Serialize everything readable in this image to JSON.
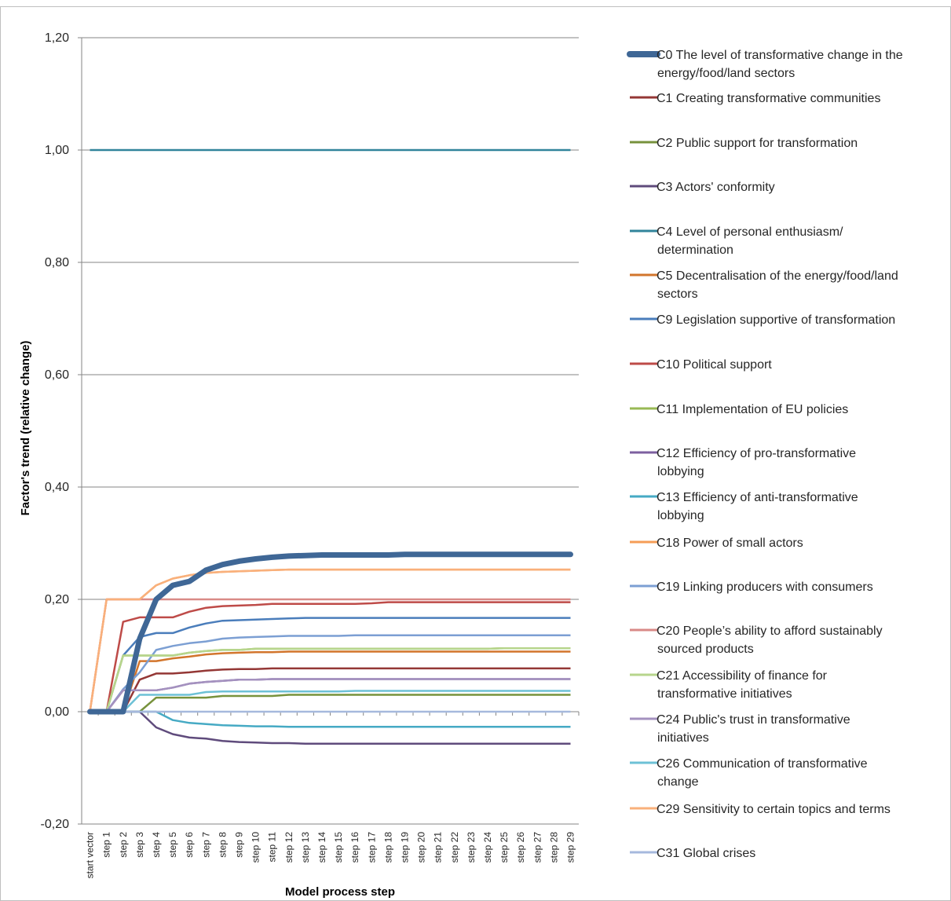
{
  "chart_data": {
    "type": "line",
    "xlabel": "Model process step",
    "ylabel": "Factor's trend (relative change)",
    "ylim": [
      -0.2,
      1.2
    ],
    "yticks": [
      -0.2,
      0.0,
      0.2,
      0.4,
      0.6,
      0.8,
      1.0,
      1.2
    ],
    "ytick_labels": [
      "-0,20",
      "0,00",
      "0,20",
      "0,40",
      "0,60",
      "0,80",
      "1,00",
      "1,20"
    ],
    "categories": [
      "start vector",
      "step 1",
      "step 2",
      "step 3",
      "step 4",
      "step 5",
      "step 6",
      "step 7",
      "step 8",
      "step 9",
      "step 10",
      "step 11",
      "step 12",
      "step 13",
      "step 14",
      "step 15",
      "step 16",
      "step 17",
      "step 18",
      "step 19",
      "step 20",
      "step 21",
      "step 22",
      "step 23",
      "step 24",
      "step 25",
      "step 26",
      "step 27",
      "step 28",
      "step 29"
    ],
    "grid": "horizontal",
    "legend_position": "right",
    "series": [
      {
        "name": "C0 The level of transformative change in the energy/food/land sectors",
        "color": "#3F6796",
        "width": 7,
        "values": [
          0,
          0,
          0,
          0.13,
          0.2,
          0.225,
          0.232,
          0.252,
          0.262,
          0.268,
          0.272,
          0.275,
          0.277,
          0.278,
          0.279,
          0.279,
          0.279,
          0.279,
          0.279,
          0.28,
          0.28,
          0.28,
          0.28,
          0.28,
          0.28,
          0.28,
          0.28,
          0.28,
          0.28,
          0.28
        ]
      },
      {
        "name": "C1 Creating transformative communities",
        "color": "#943735",
        "width": 2.5,
        "values": [
          0,
          0,
          0,
          0.057,
          0.068,
          0.068,
          0.07,
          0.073,
          0.075,
          0.076,
          0.076,
          0.077,
          0.077,
          0.077,
          0.077,
          0.077,
          0.077,
          0.077,
          0.077,
          0.077,
          0.077,
          0.077,
          0.077,
          0.077,
          0.077,
          0.077,
          0.077,
          0.077,
          0.077,
          0.077
        ]
      },
      {
        "name": "C2 Public support for transformation",
        "color": "#77923C",
        "width": 2.5,
        "values": [
          0,
          0,
          0,
          0,
          0.025,
          0.025,
          0.025,
          0.025,
          0.028,
          0.028,
          0.028,
          0.028,
          0.03,
          0.03,
          0.03,
          0.03,
          0.03,
          0.03,
          0.03,
          0.03,
          0.03,
          0.03,
          0.03,
          0.03,
          0.03,
          0.03,
          0.03,
          0.03,
          0.03,
          0.03
        ]
      },
      {
        "name": "C3 Actors' conformity",
        "color": "#5F4B7C",
        "width": 2.5,
        "values": [
          0,
          0,
          0,
          0,
          -0.028,
          -0.04,
          -0.046,
          -0.048,
          -0.052,
          -0.054,
          -0.055,
          -0.056,
          -0.056,
          -0.057,
          -0.057,
          -0.057,
          -0.057,
          -0.057,
          -0.057,
          -0.057,
          -0.057,
          -0.057,
          -0.057,
          -0.057,
          -0.057,
          -0.057,
          -0.057,
          -0.057,
          -0.057,
          -0.057
        ]
      },
      {
        "name": "C4 Level of personal enthusiasm/ determination",
        "color": "#31849B",
        "width": 2.5,
        "values": [
          1,
          1,
          1,
          1,
          1,
          1,
          1,
          1,
          1,
          1,
          1,
          1,
          1,
          1,
          1,
          1,
          1,
          1,
          1,
          1,
          1,
          1,
          1,
          1,
          1,
          1,
          1,
          1,
          1,
          1
        ]
      },
      {
        "name": "C5 Decentralisation of the energy/food/land sectors",
        "color": "#D2752C",
        "width": 2.5,
        "values": [
          0,
          0,
          0,
          0.09,
          0.09,
          0.095,
          0.098,
          0.102,
          0.104,
          0.105,
          0.106,
          0.106,
          0.107,
          0.107,
          0.107,
          0.107,
          0.107,
          0.107,
          0.107,
          0.107,
          0.107,
          0.107,
          0.107,
          0.107,
          0.107,
          0.107,
          0.107,
          0.107,
          0.107,
          0.107
        ]
      },
      {
        "name": "C9 Legislation supportive of transformation",
        "color": "#4A7DBB",
        "width": 2.5,
        "values": [
          0,
          0,
          0.1,
          0.133,
          0.14,
          0.14,
          0.15,
          0.157,
          0.162,
          0.163,
          0.164,
          0.165,
          0.166,
          0.167,
          0.167,
          0.167,
          0.167,
          0.167,
          0.167,
          0.167,
          0.167,
          0.167,
          0.167,
          0.167,
          0.167,
          0.167,
          0.167,
          0.167,
          0.167,
          0.167
        ]
      },
      {
        "name": "C10 Political support",
        "color": "#BE4B48",
        "width": 2.5,
        "values": [
          0,
          0,
          0.16,
          0.168,
          0.168,
          0.168,
          0.178,
          0.185,
          0.188,
          0.189,
          0.19,
          0.192,
          0.192,
          0.192,
          0.192,
          0.192,
          0.192,
          0.193,
          0.195,
          0.195,
          0.195,
          0.195,
          0.195,
          0.195,
          0.195,
          0.195,
          0.195,
          0.195,
          0.195,
          0.195
        ]
      },
      {
        "name": "C11 Implementation of EU policies",
        "color": "#98B954",
        "width": 2.5,
        "values": [
          0,
          0,
          0.1,
          0.1,
          0.1,
          0.1,
          0.105,
          0.108,
          0.11,
          0.11,
          0.112,
          0.112,
          0.112,
          0.112,
          0.112,
          0.112,
          0.112,
          0.112,
          0.112,
          0.112,
          0.112,
          0.112,
          0.112,
          0.112,
          0.112,
          0.113,
          0.113,
          0.113,
          0.113,
          0.113
        ]
      },
      {
        "name": "C12 Efficiency of pro-transformative lobbying",
        "color": "#7D60A0",
        "width": 2.5,
        "values": [
          0,
          0,
          0.038,
          0.038,
          0.038,
          0.043,
          0.05,
          0.053,
          0.055,
          0.057,
          0.057,
          0.058,
          0.058,
          0.058,
          0.058,
          0.058,
          0.058,
          0.058,
          0.058,
          0.058,
          0.058,
          0.058,
          0.058,
          0.058,
          0.058,
          0.058,
          0.058,
          0.058,
          0.058,
          0.058
        ]
      },
      {
        "name": "C13 Efficiency of anti-transformative lobbying",
        "color": "#46AAC4",
        "width": 2.5,
        "values": [
          0,
          0,
          0,
          0,
          0,
          -0.015,
          -0.02,
          -0.022,
          -0.024,
          -0.025,
          -0.026,
          -0.026,
          -0.027,
          -0.027,
          -0.027,
          -0.027,
          -0.027,
          -0.027,
          -0.027,
          -0.027,
          -0.027,
          -0.027,
          -0.027,
          -0.027,
          -0.027,
          -0.027,
          -0.027,
          -0.027,
          -0.027,
          -0.027
        ]
      },
      {
        "name": "C18 Power of small actors",
        "color": "#F59D56",
        "width": 2.5,
        "values": [
          0,
          0.2,
          0.2,
          0.2,
          0.225,
          0.237,
          0.243,
          0.247,
          0.249,
          0.25,
          0.251,
          0.252,
          0.253,
          0.253,
          0.253,
          0.253,
          0.253,
          0.253,
          0.253,
          0.253,
          0.253,
          0.253,
          0.253,
          0.253,
          0.253,
          0.253,
          0.253,
          0.253,
          0.253,
          0.253
        ]
      },
      {
        "name": "C19 Linking producers with consumers",
        "color": "#7C9FD3",
        "width": 2.5,
        "values": [
          0,
          0,
          0.04,
          0.07,
          0.11,
          0.117,
          0.122,
          0.125,
          0.13,
          0.132,
          0.133,
          0.134,
          0.135,
          0.135,
          0.135,
          0.135,
          0.136,
          0.136,
          0.136,
          0.136,
          0.136,
          0.136,
          0.136,
          0.136,
          0.136,
          0.136,
          0.136,
          0.136,
          0.136,
          0.136
        ]
      },
      {
        "name": "C20 People’s ability to afford sustainably sourced products",
        "color": "#D98A87",
        "width": 2.5,
        "values": [
          0,
          0.2,
          0.2,
          0.2,
          0.2,
          0.2,
          0.2,
          0.2,
          0.2,
          0.2,
          0.2,
          0.2,
          0.2,
          0.2,
          0.2,
          0.2,
          0.2,
          0.2,
          0.2,
          0.2,
          0.2,
          0.2,
          0.2,
          0.2,
          0.2,
          0.2,
          0.2,
          0.2,
          0.2,
          0.2
        ]
      },
      {
        "name": "C21 Accessibility of finance for transformative initiatives",
        "color": "#B7D58C",
        "width": 2.5,
        "values": [
          0,
          0,
          0.1,
          0.1,
          0.1,
          0.1,
          0.105,
          0.108,
          0.11,
          0.11,
          0.112,
          0.112,
          0.112,
          0.112,
          0.112,
          0.112,
          0.112,
          0.112,
          0.112,
          0.112,
          0.112,
          0.112,
          0.112,
          0.112,
          0.112,
          0.113,
          0.113,
          0.113,
          0.113,
          0.113
        ]
      },
      {
        "name": "C24 Public's trust in transformative initiatives",
        "color": "#A491BF",
        "width": 2.5,
        "values": [
          0,
          0,
          0.038,
          0.038,
          0.038,
          0.043,
          0.05,
          0.053,
          0.055,
          0.057,
          0.057,
          0.058,
          0.058,
          0.058,
          0.058,
          0.058,
          0.058,
          0.058,
          0.058,
          0.058,
          0.058,
          0.058,
          0.058,
          0.058,
          0.058,
          0.058,
          0.058,
          0.058,
          0.058,
          0.058
        ]
      },
      {
        "name": "C26 Communication of transformative change",
        "color": "#6DC1D6",
        "width": 2.5,
        "values": [
          0,
          0,
          0,
          0.03,
          0.03,
          0.03,
          0.03,
          0.035,
          0.036,
          0.036,
          0.036,
          0.036,
          0.036,
          0.036,
          0.036,
          0.036,
          0.037,
          0.037,
          0.037,
          0.037,
          0.037,
          0.037,
          0.037,
          0.037,
          0.037,
          0.037,
          0.037,
          0.037,
          0.037,
          0.037
        ]
      },
      {
        "name": "C29 Sensitivity to certain topics and terms",
        "color": "#F9B07B",
        "width": 2.5,
        "values": [
          0,
          0.2,
          0.2,
          0.2,
          0.225,
          0.237,
          0.243,
          0.247,
          0.249,
          0.25,
          0.251,
          0.252,
          0.253,
          0.253,
          0.253,
          0.253,
          0.253,
          0.253,
          0.253,
          0.253,
          0.253,
          0.253,
          0.253,
          0.253,
          0.253,
          0.253,
          0.253,
          0.253,
          0.253,
          0.253
        ]
      },
      {
        "name": "C31 Global crises",
        "color": "#A6B9DD",
        "width": 2.5,
        "values": [
          0,
          0,
          0,
          0,
          0,
          0,
          0,
          0,
          0,
          0,
          0,
          0,
          0,
          0,
          0,
          0,
          0,
          0,
          0,
          0,
          0,
          0,
          0,
          0,
          0,
          0,
          0,
          0,
          0,
          0
        ]
      }
    ],
    "legend": [
      {
        "lines": [
          "C0 The level of transformative change in the",
          "energy/food/land sectors"
        ]
      },
      {
        "lines": [
          "C1 Creating transformative communities"
        ]
      },
      {
        "lines": [
          "C2 Public support for transformation"
        ]
      },
      {
        "lines": [
          "C3 Actors' conformity"
        ]
      },
      {
        "lines": [
          "C4 Level of personal enthusiasm/",
          "determination"
        ]
      },
      {
        "lines": [
          "C5 Decentralisation of the energy/food/land",
          "sectors"
        ]
      },
      {
        "lines": [
          "C9 Legislation supportive of transformation"
        ]
      },
      {
        "lines": [
          "C10 Political support"
        ]
      },
      {
        "lines": [
          "C11 Implementation of EU policies"
        ]
      },
      {
        "lines": [
          "C12 Efficiency of pro-transformative",
          "lobbying"
        ]
      },
      {
        "lines": [
          "C13 Efficiency of anti-transformative",
          "lobbying"
        ]
      },
      {
        "lines": [
          "C18 Power of small actors"
        ]
      },
      {
        "lines": [
          "C19 Linking producers with consumers"
        ]
      },
      {
        "lines": [
          "C20 People’s ability to afford sustainably",
          "sourced products"
        ]
      },
      {
        "lines": [
          "C21 Accessibility of finance for",
          "transformative initiatives"
        ]
      },
      {
        "lines": [
          "C24 Public's trust in transformative",
          "initiatives"
        ]
      },
      {
        "lines": [
          "C26 Communication of transformative",
          "change"
        ]
      },
      {
        "lines": [
          "C29 Sensitivity to certain topics and terms"
        ]
      },
      {
        "lines": [
          "C31 Global crises"
        ]
      }
    ]
  }
}
